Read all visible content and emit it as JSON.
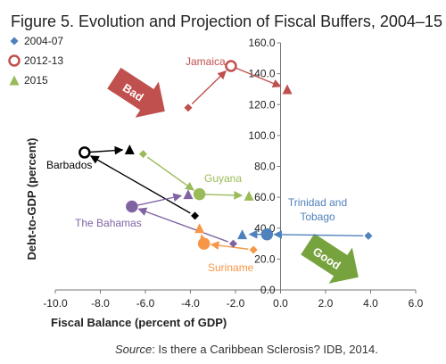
{
  "chart_data": {
    "type": "scatter",
    "title": "Figure 5. Evolution and Projection of Fiscal Buffers, 2004–15",
    "xlabel": "Fiscal Balance (percent of GDP)",
    "ylabel": "Debt-to-GDP (percent)",
    "xlim": [
      -10,
      6
    ],
    "ylim": [
      0,
      160
    ],
    "x_ticks": [
      "-10.0",
      "-8.0",
      "-6.0",
      "-4.0",
      "-2.0",
      "0.0",
      "2.0",
      "4.0",
      "6.0"
    ],
    "y_ticks": [
      "0.0",
      "20.0",
      "40.0",
      "60.0",
      "80.0",
      "100.0",
      "120.0",
      "140.0",
      "160.0"
    ],
    "legend": {
      "placement": "top-left",
      "entries": [
        {
          "label": "2004-07",
          "marker": "diamond"
        },
        {
          "label": "2012-13",
          "marker": "open-circle"
        },
        {
          "label": "2015",
          "marker": "triangle"
        }
      ]
    },
    "series": [
      {
        "name": "Jamaica",
        "color": "#c0504d",
        "points": [
          {
            "period": "2004-07",
            "x": -4.1,
            "y": 118
          },
          {
            "period": "2012-13",
            "x": -2.2,
            "y": 145
          },
          {
            "period": "2015",
            "x": 0.3,
            "y": 130
          }
        ]
      },
      {
        "name": "Barbados",
        "color": "#000000",
        "points": [
          {
            "period": "2004-07",
            "x": -3.8,
            "y": 48
          },
          {
            "period": "2012-13",
            "x": -8.7,
            "y": 89
          },
          {
            "period": "2015",
            "x": -6.7,
            "y": 91
          }
        ]
      },
      {
        "name": "Guyana",
        "color": "#9bbb59",
        "points": [
          {
            "period": "2004-07",
            "x": -6.1,
            "y": 88
          },
          {
            "period": "2012-13",
            "x": -3.6,
            "y": 62
          },
          {
            "period": "2015",
            "x": -1.4,
            "y": 61
          }
        ]
      },
      {
        "name": "The Bahamas",
        "color": "#8064a2",
        "points": [
          {
            "period": "2004-07",
            "x": -2.1,
            "y": 30
          },
          {
            "period": "2012-13",
            "x": -6.6,
            "y": 54
          },
          {
            "period": "2015",
            "x": -4.1,
            "y": 62
          }
        ]
      },
      {
        "name": "Trinidad and Tobago",
        "color": "#4f81bd",
        "points": [
          {
            "period": "2004-07",
            "x": 3.9,
            "y": 35
          },
          {
            "period": "2012-13",
            "x": -0.6,
            "y": 36
          },
          {
            "period": "2015",
            "x": -1.7,
            "y": 36
          }
        ]
      },
      {
        "name": "Suriname",
        "color": "#f79646",
        "points": [
          {
            "period": "2004-07",
            "x": -1.2,
            "y": 26
          },
          {
            "period": "2012-13",
            "x": -3.4,
            "y": 30
          },
          {
            "period": "2015",
            "x": -3.6,
            "y": 40
          }
        ]
      }
    ],
    "arrow_labels": {
      "bad": "Bad",
      "good": "Good"
    },
    "source_prefix": "Source",
    "source_text": ": Is there a Caribbean Sclerosis? IDB, 2014."
  }
}
